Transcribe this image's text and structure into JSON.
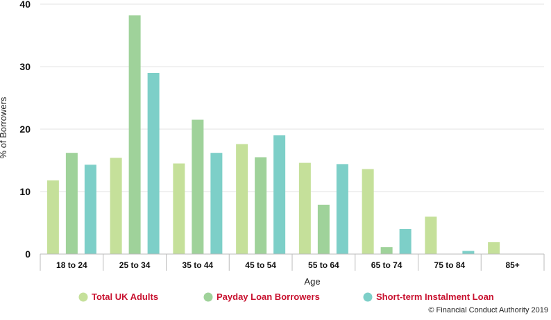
{
  "chart_data": {
    "type": "bar",
    "xlabel": "Age",
    "ylabel": "% of Borrowers",
    "ylim": [
      0,
      40
    ],
    "yticks": [
      "0",
      "10",
      "20",
      "30",
      "40"
    ],
    "grid": true,
    "legend_position": "bottom",
    "categories": [
      "18 to 24",
      "25 to 34",
      "35 to 44",
      "45 to 54",
      "55 to 64",
      "65 to 74",
      "75 to 84",
      "85+"
    ],
    "series": [
      {
        "name": "Total UK Adults",
        "color": "#c5e09a",
        "values": [
          11.8,
          15.4,
          14.5,
          17.6,
          14.6,
          13.6,
          6.0,
          1.9
        ]
      },
      {
        "name": "Payday Loan Borrowers",
        "color": "#9fd29a",
        "values": [
          16.2,
          38.2,
          21.5,
          15.5,
          7.9,
          1.1,
          0,
          0
        ]
      },
      {
        "name": "Short-term Instalment Loan",
        "color": "#7dcfc8",
        "values": [
          14.3,
          29.0,
          16.2,
          19.0,
          14.4,
          4.0,
          0.5,
          0
        ]
      }
    ]
  },
  "legend_text_color": "#c8102e",
  "copyright": "© Financial Conduct Authority 2019"
}
